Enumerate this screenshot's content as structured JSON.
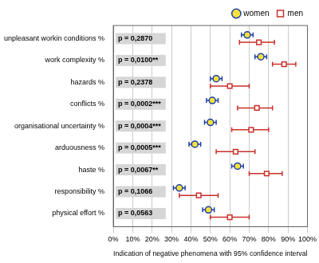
{
  "chart_data": {
    "type": "scatter",
    "categories": [
      "unpleasant workin conditions %",
      "work complexity %",
      "hazards %",
      "conflicts %",
      "organisational uncertainty %",
      "arduousness %",
      "haste %",
      "responsibility %",
      "physical effort %"
    ],
    "series": [
      {
        "name": "women",
        "color": "#1f3fa6",
        "marker": "circle",
        "values": [
          69,
          76,
          53,
          51,
          50,
          42,
          64,
          34,
          49
        ],
        "ci_low": [
          66,
          73,
          50,
          48,
          47,
          39,
          61,
          31,
          46
        ],
        "ci_high": [
          72,
          79,
          56,
          54,
          53,
          45,
          67,
          37,
          52
        ]
      },
      {
        "name": "men",
        "color": "#c8302a",
        "marker": "square",
        "values": [
          75,
          88,
          60,
          74,
          71,
          63,
          79,
          44,
          60
        ],
        "ci_low": [
          65,
          82,
          50,
          64,
          61,
          53,
          70,
          34,
          50
        ],
        "ci_high": [
          83,
          94,
          70,
          82,
          80,
          73,
          87,
          54,
          70
        ]
      }
    ],
    "p_values": [
      "p = 0,2870",
      "p = 0,0100**",
      "p = 0,2378",
      "p = 0,0002***",
      "p = 0,0004***",
      "p = 0,0005***",
      "p = 0,0067**",
      "p = 0,1066",
      "p = 0,0563"
    ],
    "xlabel": "Indication of negative phenomena with 95% confidence interval",
    "xlim": [
      0,
      100
    ],
    "xticks": [
      {
        "value": 0,
        "label": "0%"
      },
      {
        "value": 10,
        "label": "10%"
      },
      {
        "value": 20,
        "label": "20%"
      },
      {
        "value": 30,
        "label": "30%"
      },
      {
        "value": 40,
        "label": "40%"
      },
      {
        "value": 50,
        "label": "50%"
      },
      {
        "value": 60,
        "label": "60%"
      },
      {
        "value": 70,
        "label": "70%"
      },
      {
        "value": 80,
        "label": "80%"
      },
      {
        "value": 90,
        "label": "90%"
      },
      {
        "value": 100,
        "label": "100%"
      }
    ],
    "grid": true,
    "legend": "top-right"
  }
}
